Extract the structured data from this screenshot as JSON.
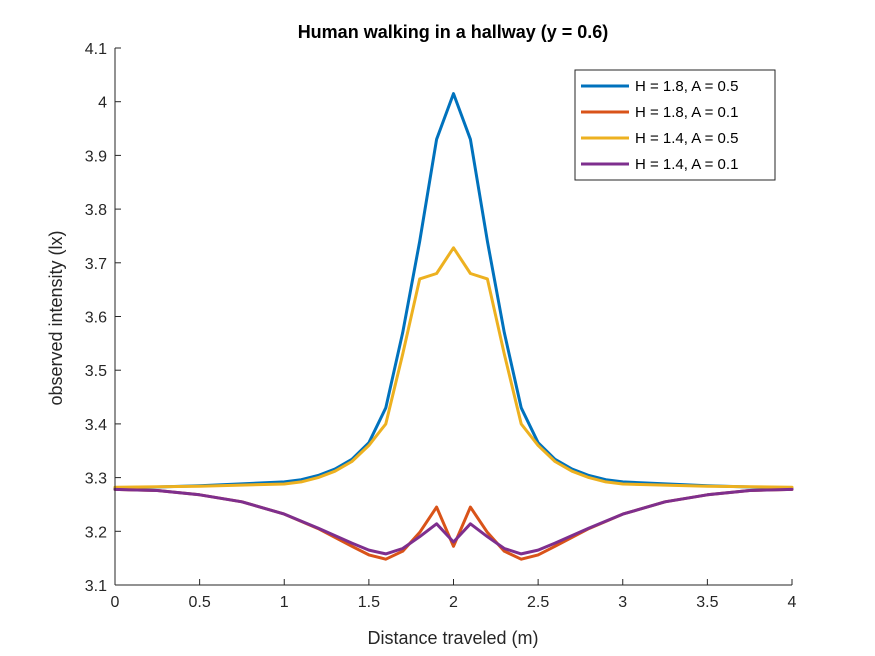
{
  "chart_data": {
    "type": "line",
    "title": "Human walking in a hallway (y = 0.6)",
    "xlabel": "Distance traveled (m)",
    "ylabel": "observed intensity (lx)",
    "xlim": [
      0,
      4
    ],
    "ylim": [
      3.1,
      4.1
    ],
    "xticks": [
      0,
      0.5,
      1,
      1.5,
      2,
      2.5,
      3,
      3.5,
      4
    ],
    "yticks": [
      3.1,
      3.2,
      3.3,
      3.4,
      3.5,
      3.6,
      3.7,
      3.8,
      3.9,
      4,
      4.1
    ],
    "grid": false,
    "legend_position": "top-right",
    "series": [
      {
        "name": "H = 1.8, A = 0.5",
        "color": "#0072BD",
        "x": [
          0,
          0.5,
          1,
          1.1,
          1.2,
          1.3,
          1.4,
          1.5,
          1.6,
          1.7,
          1.8,
          1.9,
          2.0,
          2.1,
          2.2,
          2.3,
          2.4,
          2.5,
          2.6,
          2.7,
          2.8,
          2.9,
          3.0,
          3.5,
          4
        ],
        "y": [
          3.28,
          3.285,
          3.292,
          3.296,
          3.304,
          3.316,
          3.334,
          3.365,
          3.43,
          3.57,
          3.74,
          3.93,
          4.015,
          3.93,
          3.74,
          3.57,
          3.43,
          3.365,
          3.334,
          3.316,
          3.304,
          3.296,
          3.292,
          3.285,
          3.28
        ]
      },
      {
        "name": "H = 1.8, A = 0.1",
        "color": "#D95319",
        "x": [
          0,
          0.25,
          0.5,
          0.75,
          1.0,
          1.2,
          1.4,
          1.5,
          1.6,
          1.7,
          1.8,
          1.9,
          2.0,
          2.1,
          2.2,
          2.3,
          2.4,
          2.5,
          2.6,
          2.8,
          3.0,
          3.25,
          3.5,
          3.75,
          4
        ],
        "y": [
          3.278,
          3.276,
          3.268,
          3.255,
          3.232,
          3.205,
          3.172,
          3.156,
          3.148,
          3.163,
          3.198,
          3.245,
          3.172,
          3.245,
          3.198,
          3.163,
          3.148,
          3.156,
          3.172,
          3.205,
          3.232,
          3.255,
          3.268,
          3.276,
          3.278
        ]
      },
      {
        "name": "H = 1.4, A = 0.5",
        "color": "#EDB120",
        "x": [
          0,
          0.5,
          1,
          1.1,
          1.2,
          1.3,
          1.4,
          1.5,
          1.6,
          1.7,
          1.8,
          1.9,
          2.0,
          2.1,
          2.2,
          2.3,
          2.4,
          2.5,
          2.6,
          2.7,
          2.8,
          2.9,
          3.0,
          3.5,
          4
        ],
        "y": [
          3.282,
          3.284,
          3.288,
          3.292,
          3.3,
          3.312,
          3.33,
          3.36,
          3.4,
          3.53,
          3.67,
          3.68,
          3.728,
          3.68,
          3.67,
          3.53,
          3.4,
          3.36,
          3.33,
          3.312,
          3.3,
          3.292,
          3.288,
          3.284,
          3.282
        ]
      },
      {
        "name": "H = 1.4, A = 0.1",
        "color": "#7E2F8E",
        "x": [
          0,
          0.25,
          0.5,
          0.75,
          1.0,
          1.2,
          1.4,
          1.5,
          1.6,
          1.7,
          1.8,
          1.9,
          2.0,
          2.1,
          2.2,
          2.3,
          2.4,
          2.5,
          2.6,
          2.8,
          3.0,
          3.25,
          3.5,
          3.75,
          4
        ],
        "y": [
          3.278,
          3.276,
          3.268,
          3.255,
          3.232,
          3.206,
          3.178,
          3.165,
          3.158,
          3.168,
          3.19,
          3.214,
          3.18,
          3.214,
          3.19,
          3.168,
          3.158,
          3.165,
          3.178,
          3.206,
          3.232,
          3.255,
          3.268,
          3.276,
          3.278
        ]
      }
    ]
  }
}
